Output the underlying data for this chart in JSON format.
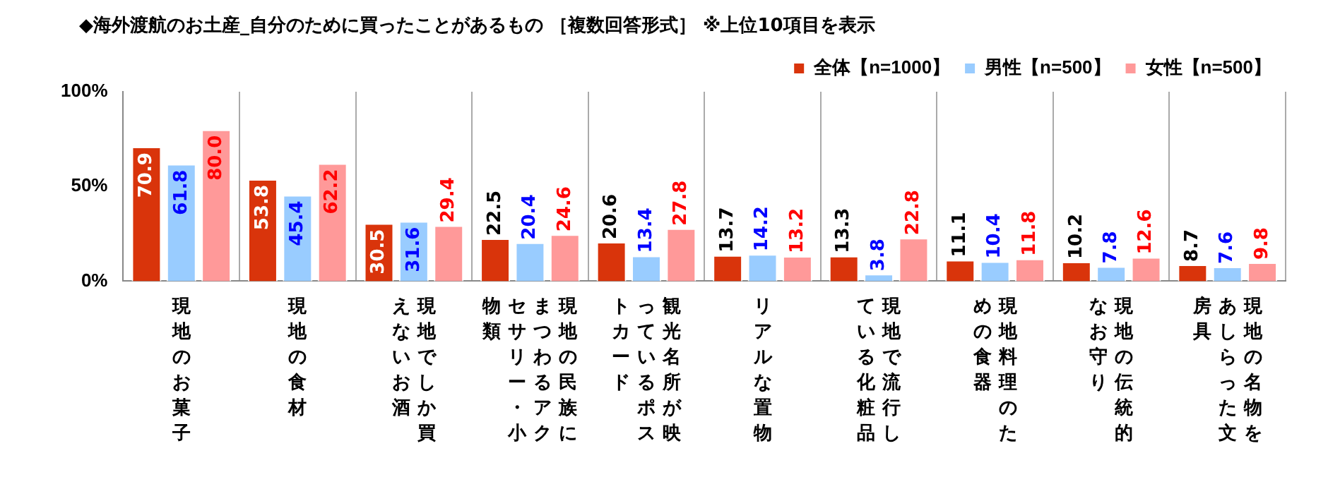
{
  "chart_data": {
    "type": "bar",
    "title": "◆海外渡航のお土産_自分のために買ったことがあるもの ［複数回答形式］ ※上位10項目を表示",
    "categories": [
      "現地のお菓子",
      "現地の食材",
      "現地でしか買えないお酒",
      "現地の民族にまつわるアクセサリー・小物類",
      "観光名所が映っているポストカード",
      "リアルな置物",
      "現地で流行している化粧品",
      "現地料理のための食器",
      "現地の伝統的なお守り",
      "現地の名物をあしらった文房具"
    ],
    "series": [
      {
        "name": "全体【n=1000】",
        "color": "#d9340b",
        "values": [
          70.9,
          53.8,
          30.5,
          22.5,
          20.6,
          13.7,
          13.3,
          11.1,
          10.2,
          8.7
        ],
        "value_labels": [
          "70.9",
          "53.8",
          "30.5",
          "22.5",
          "20.6",
          "13.7",
          "13.3",
          "11.1",
          "10.2",
          "8.7"
        ]
      },
      {
        "name": "男性【n=500】",
        "color": "#99ccff",
        "values": [
          61.8,
          45.4,
          31.6,
          20.4,
          13.4,
          14.2,
          3.8,
          10.4,
          7.8,
          7.6
        ],
        "value_labels": [
          "61.8",
          "45.4",
          "31.6",
          "20.4",
          "13.4",
          "14.2",
          "3.8",
          "10.4",
          "7.8",
          "7.6"
        ]
      },
      {
        "name": "女性【n=500】",
        "color": "#ff9999",
        "values": [
          80.0,
          62.2,
          29.4,
          24.6,
          27.8,
          13.2,
          22.8,
          11.8,
          12.6,
          9.8
        ],
        "value_labels": [
          "80.0",
          "62.2",
          "29.4",
          "24.6",
          "27.8",
          "13.2",
          "22.8",
          "11.8",
          "12.6",
          "9.8"
        ]
      }
    ],
    "ylim": [
      0,
      100
    ],
    "yticks": [
      {
        "value": 0,
        "label": "0%"
      },
      {
        "value": 50,
        "label": "50%"
      },
      {
        "value": 100,
        "label": "100%"
      }
    ],
    "grid": "x",
    "legend": "top right"
  }
}
